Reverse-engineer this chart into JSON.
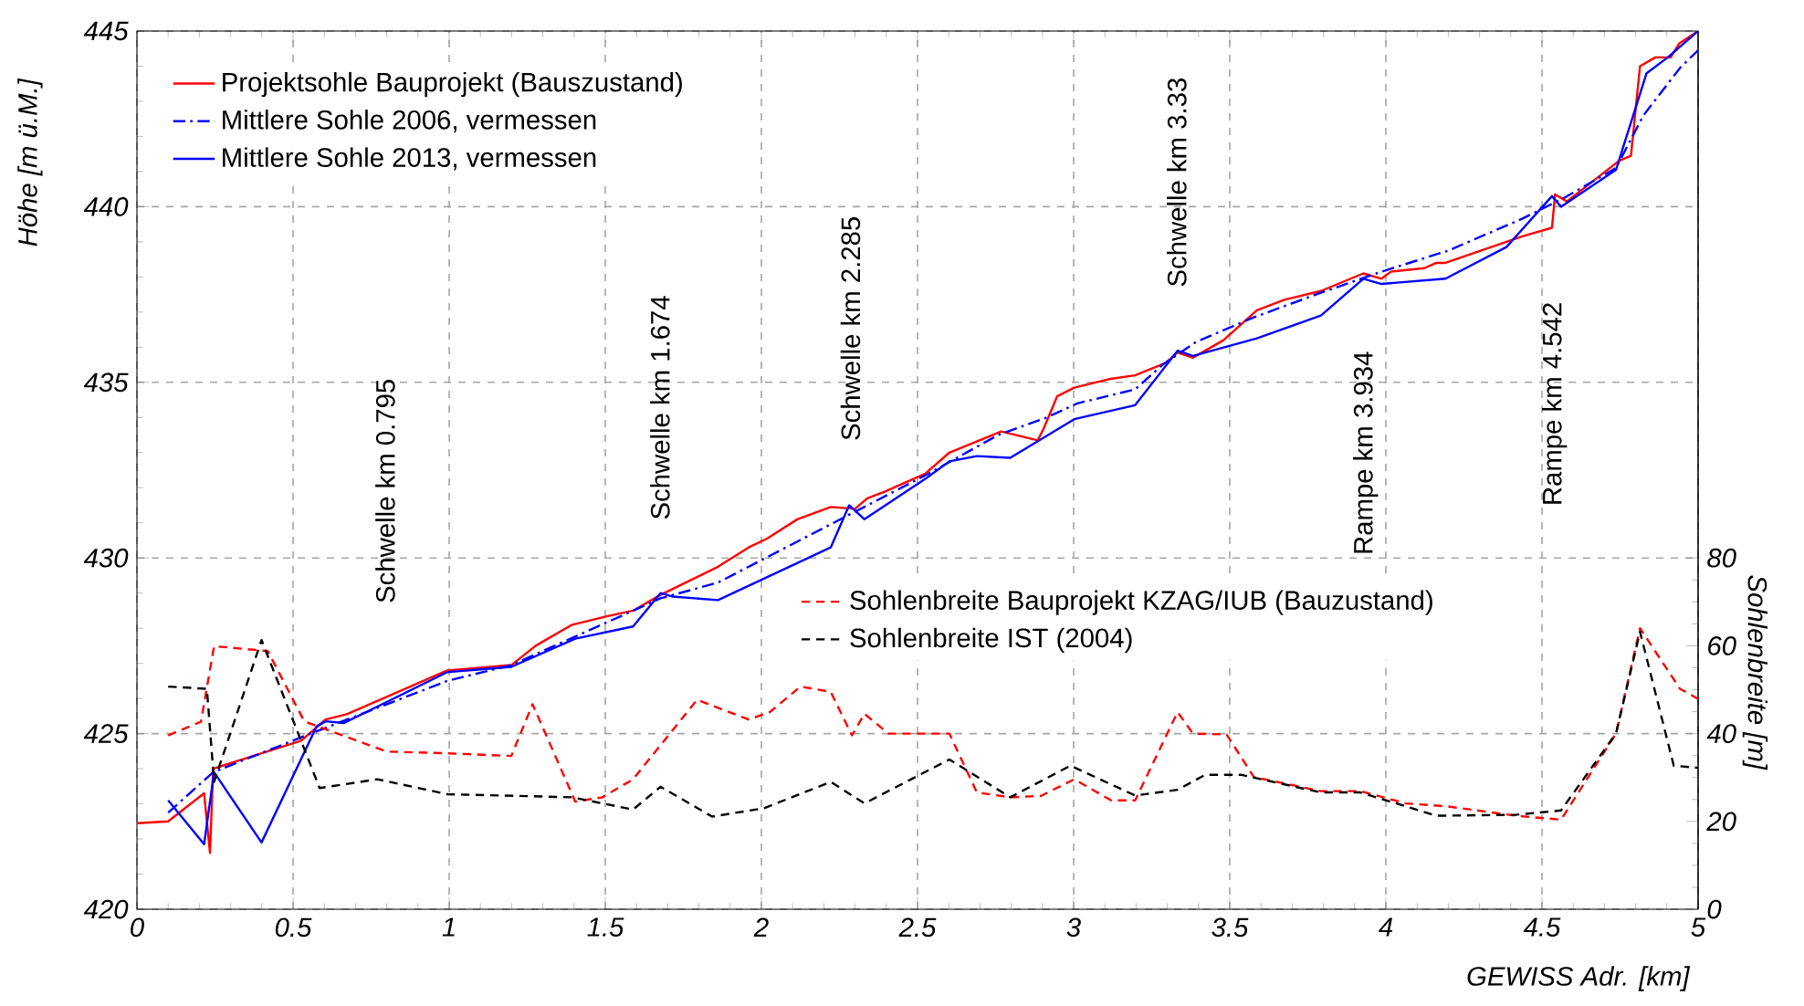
{
  "chart_data": {
    "type": "line",
    "xlabel": "GEWISS Adr. [km]",
    "ylabel": "Höhe [m ü.M.]",
    "y2label": "Sohlenbreite [m]",
    "xlim": [
      0,
      5
    ],
    "xticks": [
      0,
      0.5,
      1,
      1.5,
      2,
      2.5,
      3,
      3.5,
      4,
      4.5,
      5
    ],
    "ylim": [
      420,
      445
    ],
    "yticks": [
      420,
      425,
      430,
      435,
      440,
      445
    ],
    "y2lim": [
      0,
      200
    ],
    "y2ticks": [
      0,
      20,
      40,
      60,
      80
    ],
    "grid": true,
    "legend": "top left",
    "annotations": [
      "Schwelle km 0.795",
      "Schwelle km 1.674",
      "Schwelle km 2.285",
      "Schwelle km 3.33",
      "Rampe km 3.934",
      "Rampe km 4.542"
    ],
    "series": [
      {
        "name": "Projektsohle Bauprojekt (Bauszustand)",
        "color": "#ff0000",
        "line_style": "solid",
        "x": [
          0,
          0.1,
          0.215,
          0.234,
          0.244,
          0.526,
          0.604,
          0.672,
          0.994,
          1.199,
          1.277,
          1.394,
          1.511,
          1.589,
          1.677,
          1.861,
          1.959,
          2.018,
          2.115,
          2.222,
          2.3,
          2.339,
          2.398,
          2.525,
          2.602,
          2.768,
          2.885,
          2.905,
          2.947,
          3.002,
          3.119,
          3.197,
          3.294,
          3.333,
          3.382,
          3.48,
          3.587,
          3.675,
          3.792,
          3.928,
          3.986,
          4.016,
          4.123,
          4.162,
          4.191,
          4.435,
          4.532,
          4.542,
          4.58,
          4.746,
          4.785,
          4.814,
          4.863,
          4.912,
          4.94,
          5.0
        ],
        "values": [
          422.45,
          422.5,
          423.3,
          421.6,
          424.0,
          424.8,
          425.4,
          425.55,
          426.8,
          426.95,
          427.5,
          428.1,
          428.35,
          428.5,
          428.95,
          429.75,
          430.3,
          430.55,
          431.1,
          431.45,
          431.4,
          431.7,
          431.9,
          432.4,
          433.0,
          433.6,
          433.35,
          433.7,
          434.6,
          434.85,
          435.1,
          435.2,
          435.55,
          435.85,
          435.7,
          436.2,
          437.05,
          437.35,
          437.6,
          438.1,
          437.95,
          438.15,
          438.25,
          438.4,
          438.4,
          439.15,
          439.4,
          440.35,
          440.15,
          441.3,
          441.45,
          444.0,
          444.25,
          444.25,
          444.65,
          445.0
        ]
      },
      {
        "name": "Mittlere Sohle 2006, vermessen",
        "color": "#0000ff",
        "line_style": "dashdot",
        "x": [
          0.1,
          0.244,
          0.556,
          0.994,
          1.199,
          1.677,
          1.861,
          2.525,
          2.758,
          2.914,
          3.012,
          3.197,
          3.285,
          3.392,
          3.577,
          3.792,
          3.986,
          4.2,
          4.435,
          4.571,
          4.737,
          4.825,
          4.942,
          5.0
        ],
        "values": [
          422.75,
          423.9,
          425.0,
          426.5,
          426.95,
          428.85,
          429.3,
          432.35,
          433.5,
          434.0,
          434.4,
          434.8,
          435.5,
          436.15,
          436.85,
          437.55,
          438.15,
          438.75,
          439.65,
          440.25,
          441.1,
          442.6,
          443.95,
          444.45
        ]
      },
      {
        "name": "Mittlere Sohle 2013, vermessen",
        "color": "#0000ff",
        "line_style": "solid",
        "x": [
          0.1,
          0.215,
          0.247,
          0.399,
          0.575,
          0.604,
          0.662,
          0.8,
          0.994,
          1.199,
          1.404,
          1.589,
          1.677,
          1.716,
          1.861,
          2.222,
          2.281,
          2.33,
          2.525,
          2.602,
          2.69,
          2.797,
          3.002,
          3.197,
          3.333,
          3.382,
          3.587,
          3.792,
          3.928,
          3.986,
          4.191,
          4.386,
          4.532,
          4.561,
          4.737,
          4.835,
          4.903,
          5.0
        ],
        "values": [
          423.1,
          421.85,
          423.9,
          421.9,
          425.2,
          425.35,
          425.3,
          425.9,
          426.75,
          426.9,
          427.7,
          428.05,
          429.0,
          428.9,
          428.8,
          430.3,
          431.5,
          431.1,
          432.25,
          432.75,
          432.9,
          432.85,
          433.95,
          434.35,
          435.9,
          435.75,
          436.25,
          436.9,
          437.95,
          437.8,
          437.95,
          438.85,
          440.3,
          440.0,
          441.05,
          443.8,
          444.25,
          445.0
        ]
      },
      {
        "name": "Sohlenbreite Bauprojekt KZAG/IUB (Bauzustand)",
        "color": "#ff0000",
        "line_style": "dashed",
        "axis": "y2",
        "x": [
          0.1,
          0.205,
          0.247,
          0.419,
          0.536,
          0.604,
          0.8,
          1.0,
          1.199,
          1.267,
          1.404,
          1.491,
          1.589,
          1.794,
          1.959,
          2.027,
          2.125,
          2.222,
          2.29,
          2.33,
          2.407,
          2.602,
          2.69,
          2.797,
          2.895,
          3.002,
          3.12,
          3.197,
          3.333,
          3.382,
          3.49,
          3.577,
          3.792,
          3.918,
          4.064,
          4.2,
          4.415,
          4.561,
          4.737,
          4.814,
          4.942,
          5.0
        ],
        "values": [
          39.6,
          42.7,
          59.9,
          58.8,
          42.8,
          41.0,
          35.9,
          35.5,
          34.9,
          46.7,
          24.5,
          25.5,
          29.6,
          47.7,
          43.2,
          44.9,
          50.7,
          49.5,
          39.6,
          44.5,
          40.0,
          40.0,
          26.6,
          25.5,
          25.8,
          29.6,
          24.8,
          24.8,
          44.9,
          40.0,
          39.8,
          30.1,
          26.9,
          26.9,
          24.1,
          23.4,
          21.3,
          20.4,
          40.0,
          64.0,
          50.2,
          47.9
        ]
      },
      {
        "name": "Sohlenbreite IST (2004)",
        "color": "#000000",
        "line_style": "dashed",
        "axis": "y2",
        "x": [
          0.1,
          0.224,
          0.247,
          0.399,
          0.585,
          0.77,
          0.994,
          1.394,
          1.589,
          1.677,
          1.842,
          2.008,
          2.222,
          2.33,
          2.368,
          2.602,
          2.797,
          2.99,
          3.197,
          3.333,
          3.421,
          3.538,
          3.792,
          3.918,
          4.162,
          4.415,
          4.561,
          4.737,
          4.814,
          4.922,
          5.0
        ],
        "values": [
          50.7,
          50.2,
          29.0,
          61.3,
          27.6,
          29.6,
          26.2,
          25.5,
          22.7,
          27.9,
          21.1,
          23.0,
          29.0,
          24.1,
          25.5,
          34.1,
          25.5,
          32.7,
          25.9,
          27.2,
          30.6,
          30.6,
          26.6,
          26.6,
          21.3,
          21.5,
          22.5,
          40.0,
          63.2,
          32.7,
          32.2
        ]
      }
    ]
  }
}
